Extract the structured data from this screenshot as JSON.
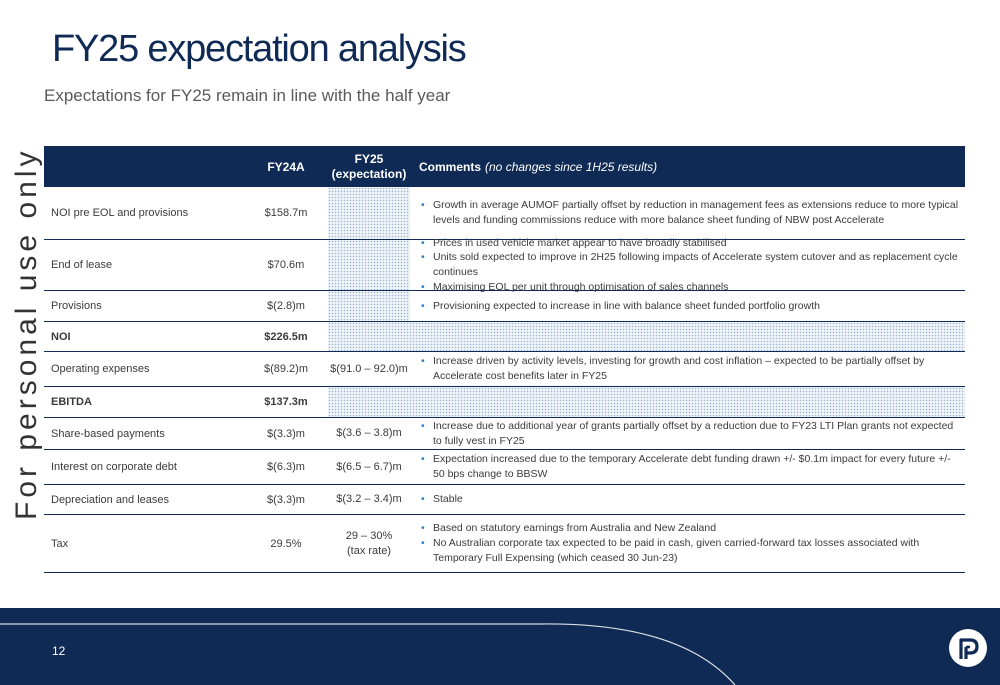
{
  "title": "FY25 expectation analysis",
  "subtitle": "Expectations for FY25 remain in line with the half year",
  "watermark": "For personal use only",
  "table": {
    "headers": {
      "fy24a": "FY24A",
      "fy25_line1": "FY25",
      "fy25_line2": "(expectation)",
      "comments_bold": "Comments",
      "comments_italic": "(no changes since 1H25 results)"
    },
    "rows": [
      {
        "label": "NOI pre EOL and provisions",
        "fy24a": "$158.7m",
        "fy25": "",
        "comments": [
          "Growth in average AUMOF partially offset by reduction in management fees as extensions reduce to more typical levels and funding commissions reduce with more balance sheet funding of NBW post Accelerate"
        ]
      },
      {
        "label": "End of lease",
        "fy24a": "$70.6m",
        "fy25": "",
        "comments": [
          "Prices in used vehicle market appear to have broadly stabilised",
          "Units sold expected to improve in 2H25 following impacts of Accelerate system cutover and as replacement cycle continues",
          "Maximising EOL per unit through optimisation of sales channels"
        ]
      },
      {
        "label": "Provisions",
        "fy24a": "$(2.8)m",
        "fy25": "",
        "comments": [
          "Provisioning expected to increase in line with balance sheet funded portfolio growth"
        ]
      },
      {
        "label": "NOI",
        "fy24a": "$226.5m",
        "fy25": "",
        "comments": []
      },
      {
        "label": "Operating expenses",
        "fy24a": "$(89.2)m",
        "fy25": "$(91.0 – 92.0)m",
        "comments": [
          "Increase driven by activity levels, investing for growth and cost inflation – expected to be partially offset by Accelerate cost benefits later in FY25"
        ]
      },
      {
        "label": "EBITDA",
        "fy24a": "$137.3m",
        "fy25": "",
        "comments": []
      },
      {
        "label": "Share-based payments",
        "fy24a": "$(3.3)m",
        "fy25": "$(3.6 – 3.8)m",
        "comments": [
          "Increase due to additional year of grants partially offset by a reduction due to FY23 LTI Plan grants not expected to fully vest in FY25"
        ]
      },
      {
        "label": "Interest on corporate debt",
        "fy24a": "$(6.3)m",
        "fy25": "$(6.5 – 6.7)m",
        "comments": [
          "Expectation increased due to the temporary Accelerate debt funding drawn +/- $0.1m impact for every future +/- 50 bps change to BBSW"
        ]
      },
      {
        "label": "Depreciation and leases",
        "fy24a": "$(3.3)m",
        "fy25": "$(3.2 – 3.4)m",
        "comments": [
          "Stable"
        ]
      },
      {
        "label": "Tax",
        "fy24a": "29.5%",
        "fy25_line1": "29 – 30%",
        "fy25_line2": "(tax rate)",
        "comments": [
          "Based on statutory earnings from Australia and New Zealand",
          "No Australian corporate tax expected to be paid in cash, given carried-forward tax losses associated with Temporary Full Expensing (which ceased 30 Jun-23)"
        ]
      }
    ]
  },
  "footer": {
    "page_number": "12",
    "logo_icon": "p-logo-icon"
  },
  "colors": {
    "navy": "#0f2a54",
    "bullet": "#2f7ec1"
  }
}
